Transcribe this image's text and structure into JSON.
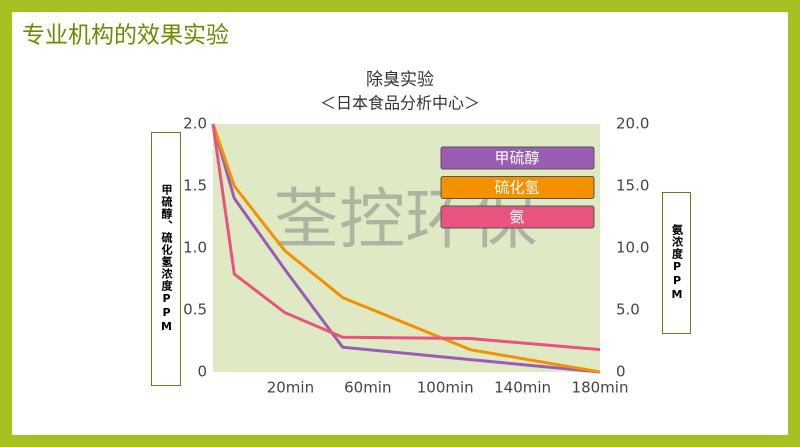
{
  "header": {
    "title": "专业机构的效果实验"
  },
  "watermark": "荃控环保",
  "chart_data": {
    "type": "line",
    "title": "除臭实验",
    "subtitle": "＜日本食品分析中心＞",
    "y_label": "甲硫醇、硫化氢浓度PPM",
    "y2_label": "氨浓度PPM",
    "x": [
      -20,
      -9,
      17,
      47,
      113,
      180
    ],
    "xlim": [
      -20,
      180
    ],
    "xticks": [
      {
        "value": 20,
        "label": "20min"
      },
      {
        "value": 60,
        "label": "60min"
      },
      {
        "value": 100,
        "label": "100min"
      },
      {
        "value": 140,
        "label": "140min"
      },
      {
        "value": 180,
        "label": "180min"
      }
    ],
    "ylim": [
      0,
      2
    ],
    "yticks": [
      0,
      0.5,
      {
        "value": 1,
        "label": "1.0"
      },
      {
        "value": 1.5,
        "label": "1.5"
      },
      {
        "value": 2,
        "label": "2.0"
      }
    ],
    "y2lim": [
      0,
      20
    ],
    "y2ticks": [
      0,
      {
        "value": 5,
        "label": "5.0"
      },
      {
        "value": 10,
        "label": "10.0"
      },
      {
        "value": 15,
        "label": "15.0"
      },
      {
        "value": 20,
        "label": "20.0"
      }
    ],
    "legend": "top-right",
    "series": [
      {
        "name": "甲硫醇",
        "color": "#9a5cb4",
        "values": [
          2.0,
          1.4,
          0.83,
          0.2,
          0.1,
          0
        ]
      },
      {
        "name": "硫化氢",
        "color": "#f39100",
        "values": [
          2.0,
          1.5,
          0.98,
          0.6,
          0.18,
          0
        ]
      },
      {
        "name": "氨",
        "color": "#e9547f",
        "axis": "y2",
        "values": [
          20,
          7.9,
          4.8,
          2.8,
          2.7,
          1.8
        ]
      }
    ]
  }
}
